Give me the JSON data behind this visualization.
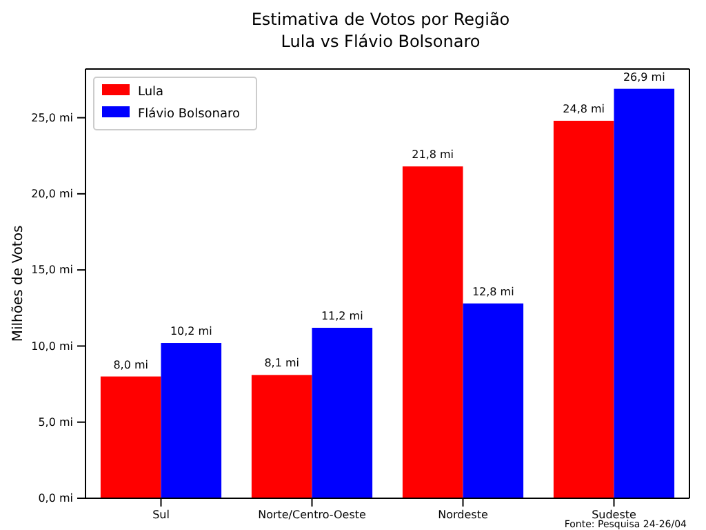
{
  "chart_data": {
    "type": "bar",
    "title": "Estimativa de Votos por Região",
    "subtitle": "Lula vs Flávio Bolsonaro",
    "ylabel": "Milhões de Votos",
    "categories": [
      "Sul",
      "Norte/Centro-Oeste",
      "Nordeste",
      "Sudeste"
    ],
    "series": [
      {
        "name": "Lula",
        "color": "#ff0000",
        "values": [
          8.0,
          8.1,
          21.8,
          24.8
        ],
        "value_labels": [
          "8,0 mi",
          "8,1 mi",
          "21,8 mi",
          "24,8 mi"
        ]
      },
      {
        "name": "Flávio Bolsonaro",
        "color": "#0000ff",
        "values": [
          10.2,
          11.2,
          12.8,
          26.9
        ],
        "value_labels": [
          "10,2 mi",
          "11,2 mi",
          "12,8 mi",
          "26,9 mi"
        ]
      }
    ],
    "ylim": [
      0,
      28.2
    ],
    "yticks": [
      {
        "value": 0,
        "label": "0,0 mi"
      },
      {
        "value": 5,
        "label": "5,0 mi"
      },
      {
        "value": 10,
        "label": "10,0 mi"
      },
      {
        "value": 15,
        "label": "15,0 mi"
      },
      {
        "value": 20,
        "label": "20,0 mi"
      },
      {
        "value": 25,
        "label": "25,0 mi"
      }
    ],
    "legend": "top left",
    "annotations": [
      "Fonte: Pesquisa 24-26/04"
    ]
  }
}
